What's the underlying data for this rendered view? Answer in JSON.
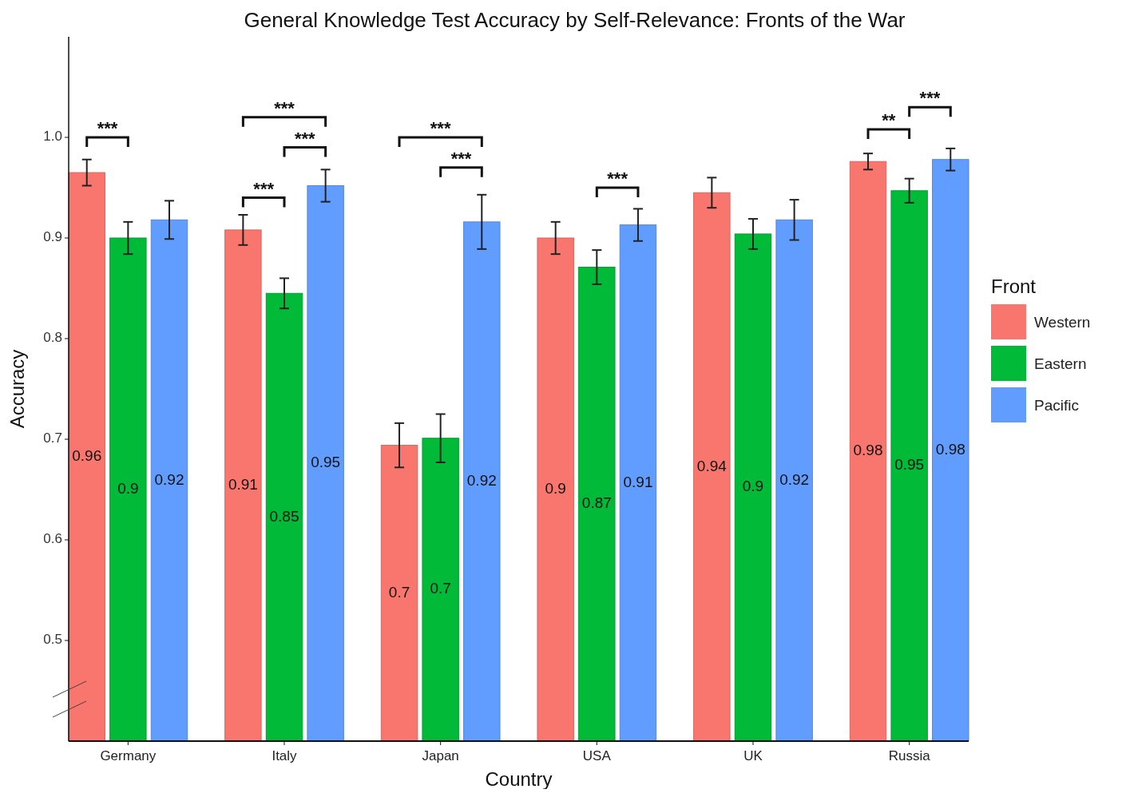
{
  "chart_data": {
    "type": "bar",
    "title": "General Knowledge Test Accuracy by Self-Relevance: Fronts of the War",
    "xlabel": "Country",
    "ylabel": "Accuracy",
    "legend_title": "Front",
    "legend": "right",
    "grid": false,
    "categories": [
      "Germany",
      "Italy",
      "Japan",
      "USA",
      "UK",
      "Russia"
    ],
    "ylim": [
      0.4,
      1.1
    ],
    "yticks": [
      0.5,
      0.6,
      0.7,
      0.8,
      0.9,
      {
        "value": 1,
        "label": "1.0"
      }
    ],
    "series": [
      {
        "name": "Western",
        "color": "#f8766d",
        "values": [
          0.965,
          0.908,
          0.694,
          0.9,
          0.945,
          0.976
        ],
        "errors": [
          0.013,
          0.015,
          0.022,
          0.016,
          0.015,
          0.008
        ],
        "value_labels": [
          "0.96",
          "0.91",
          "0.7",
          "0.9",
          "0.94",
          "0.98"
        ]
      },
      {
        "name": "Eastern",
        "color": "#00ba38",
        "values": [
          0.9,
          0.845,
          0.701,
          0.871,
          0.904,
          0.947
        ],
        "errors": [
          0.016,
          0.015,
          0.024,
          0.017,
          0.015,
          0.012
        ],
        "value_labels": [
          "0.9",
          "0.85",
          "0.7",
          "0.87",
          "0.9",
          "0.95"
        ]
      },
      {
        "name": "Pacific",
        "color": "#619cff",
        "values": [
          0.918,
          0.952,
          0.916,
          0.913,
          0.918,
          0.978
        ],
        "errors": [
          0.019,
          0.016,
          0.027,
          0.016,
          0.02,
          0.011
        ],
        "value_labels": [
          "0.92",
          "0.95",
          "0.92",
          "0.91",
          "0.92",
          "0.98"
        ]
      }
    ],
    "annotations": [
      "***",
      "***",
      "***",
      "***",
      "***",
      "***",
      "***",
      "**",
      "***"
    ]
  }
}
